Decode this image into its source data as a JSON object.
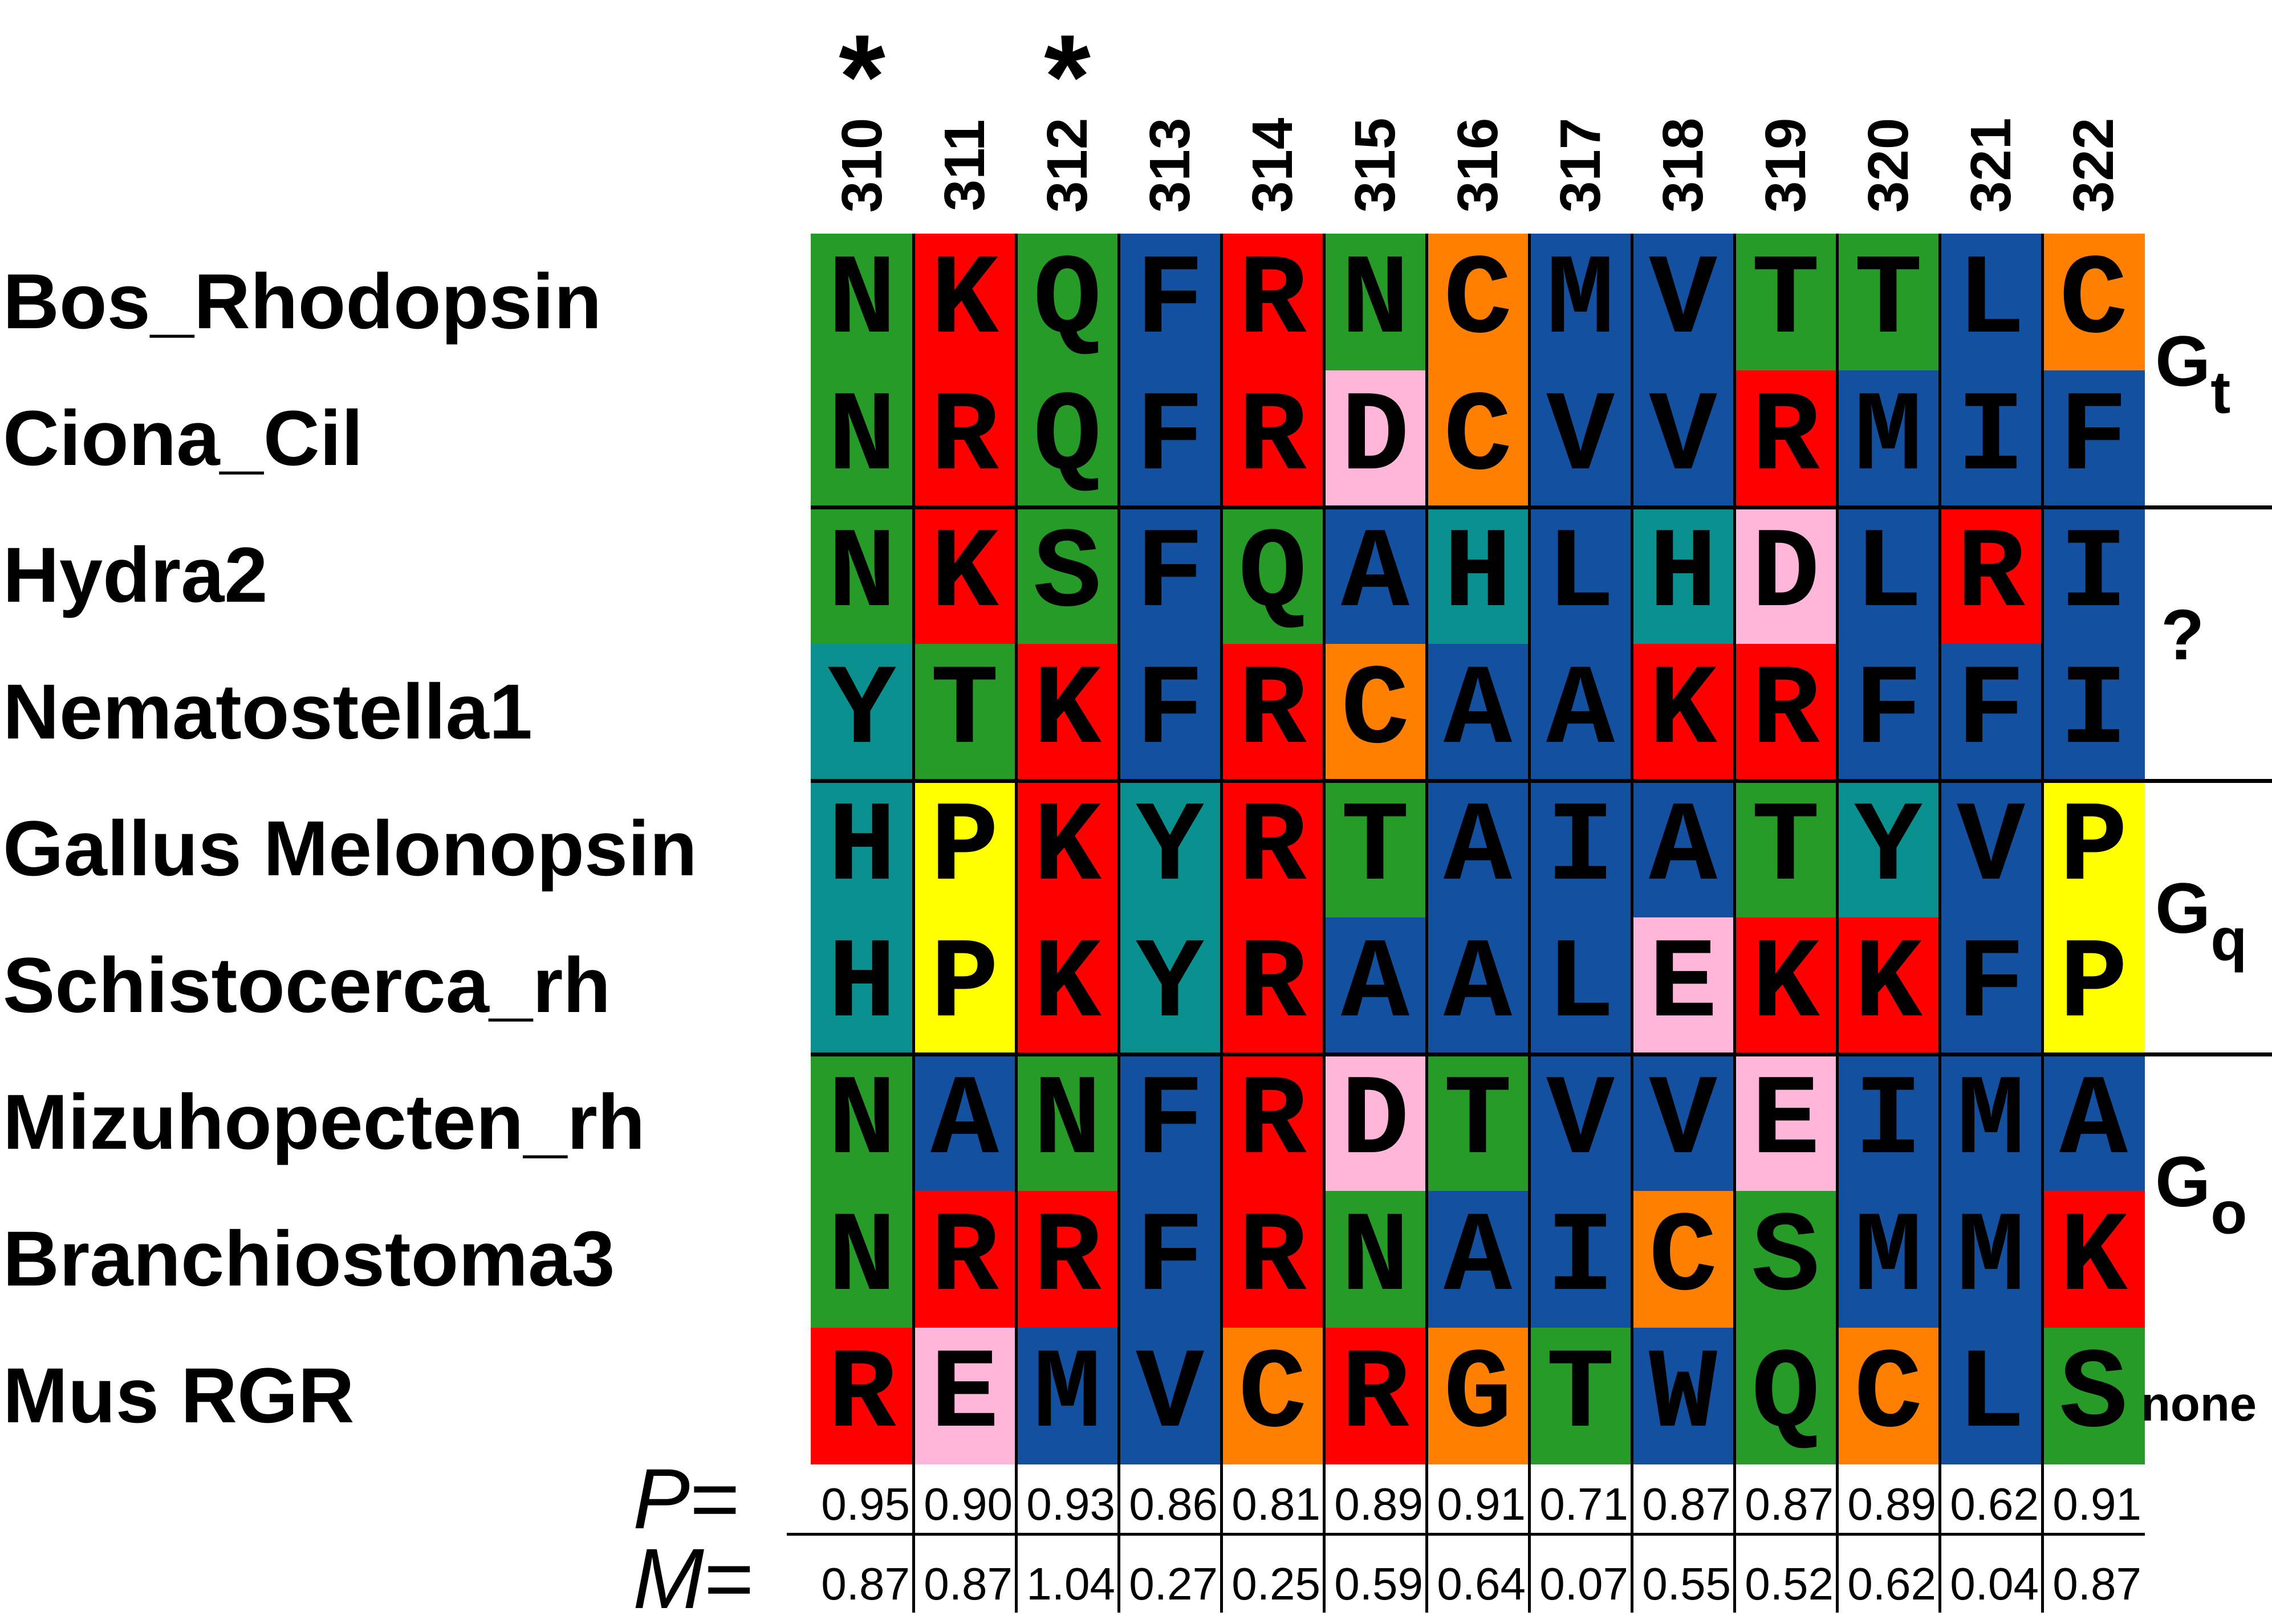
{
  "positions": [
    "310",
    "311",
    "312",
    "313",
    "314",
    "315",
    "316",
    "317",
    "318",
    "319",
    "320",
    "321",
    "322"
  ],
  "starred_positions": [
    "310",
    "312"
  ],
  "star_symbol": "*",
  "species": [
    {
      "name": "Bos_Rhodopsin",
      "seq": [
        "N",
        "K",
        "Q",
        "F",
        "R",
        "N",
        "C",
        "M",
        "V",
        "T",
        "T",
        "L",
        "C"
      ]
    },
    {
      "name": "Ciona_Cil",
      "seq": [
        "N",
        "R",
        "Q",
        "F",
        "R",
        "D",
        "C",
        "V",
        "V",
        "R",
        "M",
        "I",
        "F"
      ]
    },
    {
      "name": "Hydra2",
      "seq": [
        "N",
        "K",
        "S",
        "F",
        "Q",
        "A",
        "H",
        "L",
        "H",
        "D",
        "L",
        "R",
        "I"
      ]
    },
    {
      "name": "Nematostella1",
      "seq": [
        "Y",
        "T",
        "K",
        "F",
        "R",
        "C",
        "A",
        "A",
        "K",
        "R",
        "F",
        "F",
        "I"
      ]
    },
    {
      "name": "Gallus Melonopsin",
      "seq": [
        "H",
        "P",
        "K",
        "Y",
        "R",
        "T",
        "A",
        "I",
        "A",
        "T",
        "Y",
        "V",
        "P"
      ]
    },
    {
      "name": "Schistocerca_rh",
      "seq": [
        "H",
        "P",
        "K",
        "Y",
        "R",
        "A",
        "A",
        "L",
        "E",
        "K",
        "K",
        "F",
        "P"
      ]
    },
    {
      "name": "Mizuhopecten_rh",
      "seq": [
        "N",
        "A",
        "N",
        "F",
        "R",
        "D",
        "T",
        "V",
        "V",
        "E",
        "I",
        "M",
        "A"
      ]
    },
    {
      "name": "Branchiostoma3",
      "seq": [
        "N",
        "R",
        "R",
        "F",
        "R",
        "N",
        "A",
        "I",
        "C",
        "S",
        "M",
        "M",
        "K"
      ]
    },
    {
      "name": "Mus RGR",
      "seq": [
        "R",
        "E",
        "M",
        "V",
        "C",
        "R",
        "G",
        "T",
        "W",
        "Q",
        "C",
        "L",
        "S"
      ]
    }
  ],
  "groups": [
    {
      "label": "G",
      "sub": "t"
    },
    {
      "label": "?",
      "sub": ""
    },
    {
      "label": "G",
      "sub": "q"
    },
    {
      "label": "G",
      "sub": "o"
    },
    {
      "label": "none",
      "sub": ""
    }
  ],
  "scores": {
    "p_label": "P",
    "m_label": "M",
    "eq": "=",
    "P": [
      "0.95",
      "0.90",
      "0.93",
      "0.86",
      "0.81",
      "0.89",
      "0.91",
      "0.71",
      "0.87",
      "0.87",
      "0.89",
      "0.62",
      "0.91"
    ],
    "M": [
      "0.87",
      "0.87",
      "1.04",
      "0.27",
      "0.25",
      "0.59",
      "0.64",
      "0.07",
      "0.55",
      "0.52",
      "0.62",
      "0.04",
      "0.87"
    ]
  },
  "residue_colors": {
    "A": "#1450a0",
    "I": "#1450a0",
    "L": "#1450a0",
    "M": "#1450a0",
    "F": "#1450a0",
    "W": "#1450a0",
    "V": "#1450a0",
    "K": "#ff0000",
    "R": "#ff0000",
    "E": "#ffb6d9",
    "D": "#ffb6d9",
    "N": "#279b27",
    "Q": "#279b27",
    "S": "#279b27",
    "T": "#279b27",
    "C": "#ff8000",
    "G": "#ff8000",
    "P": "#ffff00",
    "H": "#0b9090",
    "Y": "#0b9090"
  }
}
